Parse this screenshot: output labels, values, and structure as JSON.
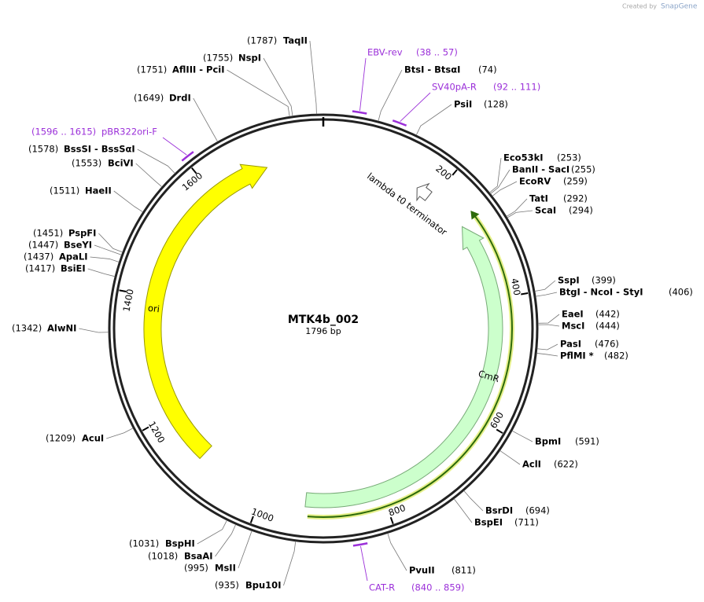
{
  "created_by": "Created by",
  "brand": "SnapGene",
  "name": "MTK4b_002",
  "length": "1796 bp",
  "ticks": [
    "200",
    "400",
    "600",
    "800",
    "1000",
    "1200",
    "1400",
    "1600"
  ],
  "features": [
    {
      "label": "lambda t0 terminator"
    },
    {
      "label": "CmR"
    },
    {
      "label": "ori"
    }
  ],
  "primers": [
    {
      "name": "EBV-rev",
      "range": "(38 .. 57)"
    },
    {
      "name": "SV40pA-R",
      "range": "(92 .. 111)"
    },
    {
      "name": "CAT-R",
      "range": "(840 .. 859)"
    },
    {
      "name": "pBR322ori-F",
      "range": "(1596 .. 1615)"
    }
  ],
  "sites": [
    {
      "pos": "(74)",
      "name": "BtsI - BtsαI"
    },
    {
      "pos": "(128)",
      "name": "PsiI"
    },
    {
      "pos": "(253)",
      "name": "Eco53kI"
    },
    {
      "pos": "(255)",
      "name": "BanII - SacI"
    },
    {
      "pos": "(259)",
      "name": "EcoRV"
    },
    {
      "pos": "(292)",
      "name": "TatI"
    },
    {
      "pos": "(294)",
      "name": "ScaI"
    },
    {
      "pos": "(399)",
      "name": "SspI"
    },
    {
      "pos": "(406)",
      "name": "BtgI - NcoI - StyI"
    },
    {
      "pos": "(442)",
      "name": "EaeI"
    },
    {
      "pos": "(444)",
      "name": "MscI"
    },
    {
      "pos": "(476)",
      "name": "PasI"
    },
    {
      "pos": "(482)",
      "name": "PflMI *"
    },
    {
      "pos": "(591)",
      "name": "BpmI"
    },
    {
      "pos": "(622)",
      "name": "AclI"
    },
    {
      "pos": "(694)",
      "name": "BsrDI"
    },
    {
      "pos": "(711)",
      "name": "BspEI"
    },
    {
      "pos": "(811)",
      "name": "PvuII"
    },
    {
      "pos": "(1787)",
      "name": "TaqII"
    },
    {
      "pos": "(1755)",
      "name": "NspI"
    },
    {
      "pos": "(1751)",
      "name": "AflIII - PciI"
    },
    {
      "pos": "(1649)",
      "name": "DrdI"
    },
    {
      "pos": "(1578)",
      "name": "BssSI - BssSαI"
    },
    {
      "pos": "(1553)",
      "name": "BciVI"
    },
    {
      "pos": "(1511)",
      "name": "HaeII"
    },
    {
      "pos": "(1451)",
      "name": "PspFI"
    },
    {
      "pos": "(1447)",
      "name": "BseYI"
    },
    {
      "pos": "(1437)",
      "name": "ApaLI"
    },
    {
      "pos": "(1417)",
      "name": "BsiEI"
    },
    {
      "pos": "(1342)",
      "name": "AlwNI"
    },
    {
      "pos": "(1209)",
      "name": "AcuI"
    },
    {
      "pos": "(1031)",
      "name": "BspHI"
    },
    {
      "pos": "(1018)",
      "name": "BsaAI"
    },
    {
      "pos": "(995)",
      "name": "MsII"
    },
    {
      "pos": "(935)",
      "name": "Bpu10I"
    }
  ]
}
